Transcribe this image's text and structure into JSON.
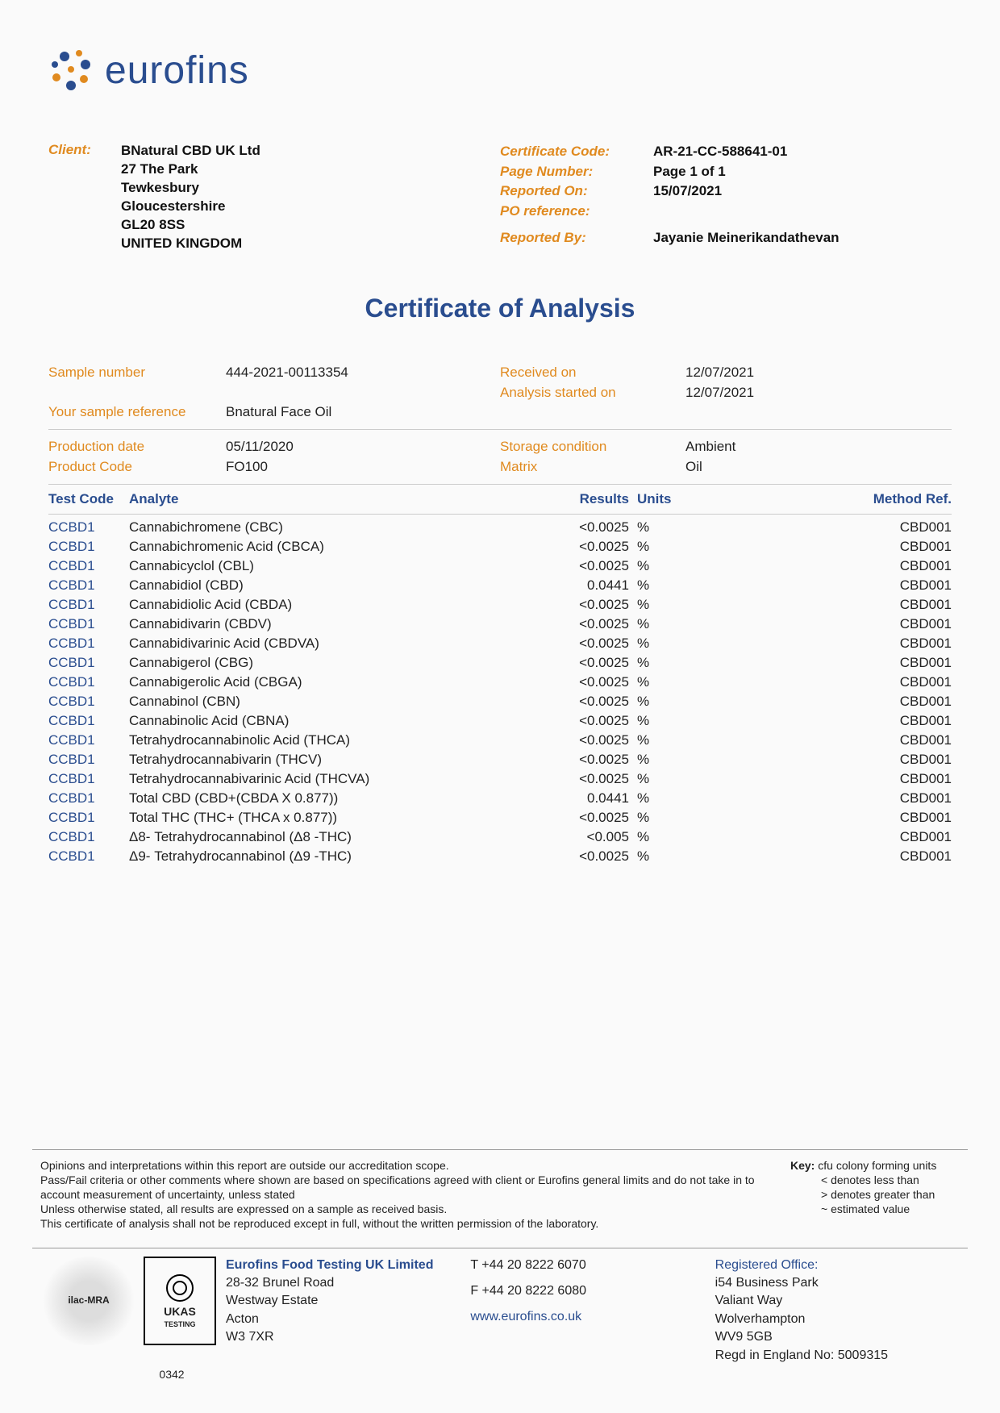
{
  "logo": {
    "text": "eurofins"
  },
  "header": {
    "client_label": "Client:",
    "client_address": [
      "BNatural CBD UK Ltd",
      "27 The Park",
      "Tewkesbury",
      "Gloucestershire",
      "GL20 8SS",
      "UNITED KINGDOM"
    ],
    "meta": [
      {
        "label": "Certificate Code:",
        "value": "AR-21-CC-588641-01"
      },
      {
        "label": "Page Number:",
        "value": "Page 1 of 1"
      },
      {
        "label": "Reported On:",
        "value": "15/07/2021"
      },
      {
        "label": "PO reference:",
        "value": ""
      },
      {
        "label": "Reported By:",
        "value": "Jayanie Meinerikandathevan"
      }
    ]
  },
  "title": "Certificate of Analysis",
  "sample": {
    "rows": [
      [
        {
          "label": "Sample number",
          "value": "444-2021-00113354"
        },
        {
          "label": "Received on",
          "value": "12/07/2021"
        }
      ],
      [
        {
          "label": "",
          "value": ""
        },
        {
          "label": "Analysis started on",
          "value": "12/07/2021"
        }
      ],
      [
        {
          "label": "Your sample reference",
          "value": "Bnatural Face Oil"
        },
        {
          "label": "",
          "value": ""
        }
      ]
    ],
    "rows2": [
      [
        {
          "label": "Production date",
          "value": "05/11/2020"
        },
        {
          "label": "Storage condition",
          "value": "Ambient"
        }
      ],
      [
        {
          "label": "Product Code",
          "value": "FO100"
        },
        {
          "label": "Matrix",
          "value": "Oil"
        }
      ]
    ]
  },
  "table": {
    "headers": {
      "code": "Test Code",
      "analyte": "Analyte",
      "results": "Results",
      "units": "Units",
      "method": "Method Ref."
    },
    "rows": [
      {
        "code": "CCBD1",
        "analyte": "Cannabichromene (CBC)",
        "result": "<0.0025",
        "units": "%",
        "method": "CBD001"
      },
      {
        "code": "CCBD1",
        "analyte": "Cannabichromenic Acid (CBCA)",
        "result": "<0.0025",
        "units": "%",
        "method": "CBD001"
      },
      {
        "code": "CCBD1",
        "analyte": "Cannabicyclol (CBL)",
        "result": "<0.0025",
        "units": "%",
        "method": "CBD001"
      },
      {
        "code": "CCBD1",
        "analyte": "Cannabidiol (CBD)",
        "result": "0.0441",
        "units": "%",
        "method": "CBD001"
      },
      {
        "code": "CCBD1",
        "analyte": "Cannabidiolic Acid (CBDA)",
        "result": "<0.0025",
        "units": "%",
        "method": "CBD001"
      },
      {
        "code": "CCBD1",
        "analyte": "Cannabidivarin (CBDV)",
        "result": "<0.0025",
        "units": "%",
        "method": "CBD001"
      },
      {
        "code": "CCBD1",
        "analyte": "Cannabidivarinic Acid (CBDVA)",
        "result": "<0.0025",
        "units": "%",
        "method": "CBD001"
      },
      {
        "code": "CCBD1",
        "analyte": "Cannabigerol (CBG)",
        "result": "<0.0025",
        "units": "%",
        "method": "CBD001"
      },
      {
        "code": "CCBD1",
        "analyte": "Cannabigerolic Acid (CBGA)",
        "result": "<0.0025",
        "units": "%",
        "method": "CBD001"
      },
      {
        "code": "CCBD1",
        "analyte": "Cannabinol (CBN)",
        "result": "<0.0025",
        "units": "%",
        "method": "CBD001"
      },
      {
        "code": "CCBD1",
        "analyte": "Cannabinolic Acid (CBNA)",
        "result": "<0.0025",
        "units": "%",
        "method": "CBD001"
      },
      {
        "code": "CCBD1",
        "analyte": "Tetrahydrocannabinolic Acid (THCA)",
        "result": "<0.0025",
        "units": "%",
        "method": "CBD001"
      },
      {
        "code": "CCBD1",
        "analyte": "Tetrahydrocannabivarin (THCV)",
        "result": "<0.0025",
        "units": "%",
        "method": "CBD001"
      },
      {
        "code": "CCBD1",
        "analyte": "Tetrahydrocannabivarinic Acid (THCVA)",
        "result": "<0.0025",
        "units": "%",
        "method": "CBD001"
      },
      {
        "code": "CCBD1",
        "analyte": "Total CBD (CBD+(CBDA X 0.877))",
        "result": "0.0441",
        "units": "%",
        "method": "CBD001"
      },
      {
        "code": "CCBD1",
        "analyte": "Total THC (THC+ (THCA x 0.877))",
        "result": "<0.0025",
        "units": "%",
        "method": "CBD001"
      },
      {
        "code": "CCBD1",
        "analyte": "Δ8- Tetrahydrocannabinol (Δ8 -THC)",
        "result": "<0.005",
        "units": "%",
        "method": "CBD001"
      },
      {
        "code": "CCBD1",
        "analyte": "Δ9- Tetrahydrocannabinol (Δ9 -THC)",
        "result": "<0.0025",
        "units": "%",
        "method": "CBD001"
      }
    ]
  },
  "footer": {
    "disclaimer": [
      "Opinions and interpretations within this report are outside our accreditation scope.",
      "Pass/Fail criteria or other comments where shown are based on specifications agreed with client or Eurofins general limits and do not take in to account measurement of uncertainty, unless stated",
      "Unless otherwise stated, all results are expressed on a sample as received basis.",
      "This certificate of analysis shall not be reproduced except in full, without the written permission of the laboratory."
    ],
    "key": {
      "title": "Key:",
      "items": [
        "cfu colony forming units",
        "< denotes less than",
        "> denotes greater than",
        "~ estimated value"
      ]
    },
    "accreditation": {
      "ilac": "ilac-MRA",
      "ukas": "UKAS",
      "ukas_sub": "TESTING",
      "number": "0342"
    },
    "company": {
      "name": "Eurofins Food Testing UK Limited",
      "address": [
        "28-32 Brunel Road",
        "Westway Estate",
        "Acton",
        "W3 7XR"
      ]
    },
    "contact": {
      "tel": "T  +44 20 8222 6070",
      "fax": "F  +44 20 8222 6080",
      "web": "www.eurofins.co.uk"
    },
    "registered": {
      "title": "Registered Office:",
      "lines": [
        "i54 Business Park",
        "Valiant Way",
        "Wolverhampton",
        "WV9 5GB",
        "Regd in England No: 5009315"
      ]
    }
  }
}
